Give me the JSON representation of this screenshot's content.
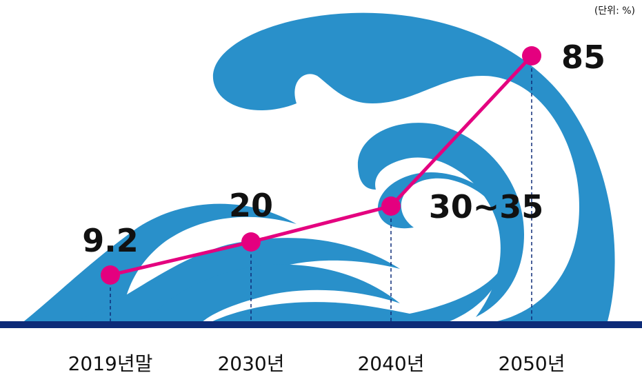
{
  "chart_data": {
    "type": "line",
    "unit_label": "(단위: %)",
    "categories": [
      "2019년말",
      "2030년",
      "2040년",
      "2050년"
    ],
    "series": [
      {
        "values": [
          9.2,
          20,
          32.5,
          85
        ]
      }
    ],
    "value_labels": [
      "9.2",
      "20",
      "30~35",
      "85"
    ],
    "ylim": [
      0,
      100
    ],
    "grid": false,
    "colors": {
      "line": "#e4007f",
      "wave": "#2990ca",
      "baseline": "#0d2b78",
      "dash": "#0d2b78"
    }
  }
}
